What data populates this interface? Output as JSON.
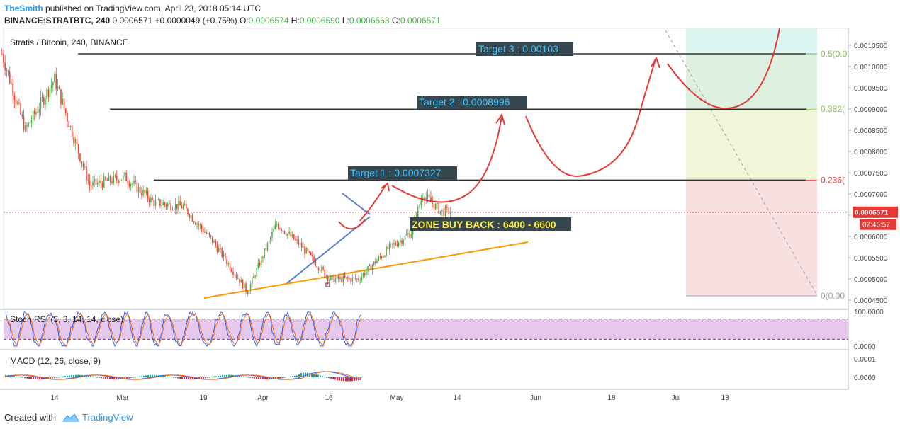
{
  "header": {
    "author": "TheSmith",
    "published": "published on TradingView.com, April 23, 2018 05:14 UTC",
    "symbol": "BINANCE:STRATBTC, 240",
    "last": "0.0006571",
    "change": "+0.0000049 (+0.75%)",
    "o_label": "O:",
    "o_value": "0.0006574",
    "h_label": "H:",
    "h_value": "0.0006590",
    "l_label": "L:",
    "l_value": "0.0006563",
    "c_label": "C:",
    "c_value": "0.0006571"
  },
  "footer": {
    "created_with": "Created with",
    "brand": "TradingView"
  },
  "colors": {
    "up": "#4caf50",
    "down": "#f44336",
    "target_bg": "#37474f",
    "target_text": "#40c4ff",
    "zone_bg": "#37474f",
    "zone_text": "#ffeb3b",
    "forecast": "#e53935",
    "fib_green": "#c8e6c9",
    "fib_red": "#f6cfcf",
    "fib_teal": "#d3f3ec",
    "trend_orange": "#ff9800",
    "trend_blue": "#5b7fd1",
    "rsi_band": "#e1bee7"
  },
  "chart_data": {
    "type": "candlestick",
    "title": "Stratis / Bitcoin, 240, BINANCE",
    "last_price": "0.0006571",
    "countdown": "02:45:57",
    "y_range": [
      0.00043,
      0.00109
    ],
    "y_ticks": [
      "0.0010500",
      "0.0010000",
      "0.0009500",
      "0.0009000",
      "0.0008500",
      "0.0008000",
      "0.0007500",
      "0.0007000",
      "0.0006500",
      "0.0006000",
      "0.0005500",
      "0.0005000",
      "0.0004500"
    ],
    "x_ticks": [
      "14",
      "Mar",
      "19",
      "Apr",
      "16",
      "May",
      "14",
      "Jun",
      "18",
      "Jul",
      "13"
    ],
    "targets": [
      {
        "label": "Target 1 : 0.0007327",
        "price": 0.0007327
      },
      {
        "label": "Target 2 : 0.0008996",
        "price": 0.0008996
      },
      {
        "label": "Target 3 : 0.00103",
        "price": 0.00103
      }
    ],
    "zone_label": "ZONE BUY BACK : 6400 - 6600",
    "fib_levels": [
      {
        "label": "0.5(0.0",
        "price": 0.00103
      },
      {
        "label": "0.382(",
        "price": 0.0008996
      },
      {
        "label": "0.236(",
        "price": 0.0007327
      },
      {
        "label": "0(0.00",
        "price": 0.00046
      }
    ],
    "price_anchors": [
      {
        "date": "Feb 5",
        "price": 0.00103
      },
      {
        "date": "Feb 9",
        "price": 0.00085
      },
      {
        "date": "Feb 14",
        "price": 0.00097
      },
      {
        "date": "Feb 20",
        "price": 0.00072
      },
      {
        "date": "Feb 26",
        "price": 0.00074
      },
      {
        "date": "Mar 3",
        "price": 0.00068
      },
      {
        "date": "Mar 8",
        "price": 0.00067
      },
      {
        "date": "Mar 13",
        "price": 0.00059
      },
      {
        "date": "Mar 19",
        "price": 0.00047
      },
      {
        "date": "Mar 24",
        "price": 0.00063
      },
      {
        "date": "Mar 28",
        "price": 0.00058
      },
      {
        "date": "Apr 2",
        "price": 0.0005
      },
      {
        "date": "Apr 7",
        "price": 0.0005
      },
      {
        "date": "Apr 12",
        "price": 0.00057
      },
      {
        "date": "Apr 16",
        "price": 0.00061
      },
      {
        "date": "Apr 18",
        "price": 0.0007
      },
      {
        "date": "Apr 21",
        "price": 0.00066
      },
      {
        "date": "Apr 23",
        "price": 0.0006571
      }
    ],
    "stoch_rsi": {
      "label": "Stoch RSI (3, 3, 14, 14, close)",
      "ticks": [
        "100.0000",
        "0.0000"
      ]
    },
    "macd": {
      "label": "MACD (12, 26, close, 9)",
      "ticks": [
        "0.0001",
        "0.0000"
      ]
    }
  }
}
